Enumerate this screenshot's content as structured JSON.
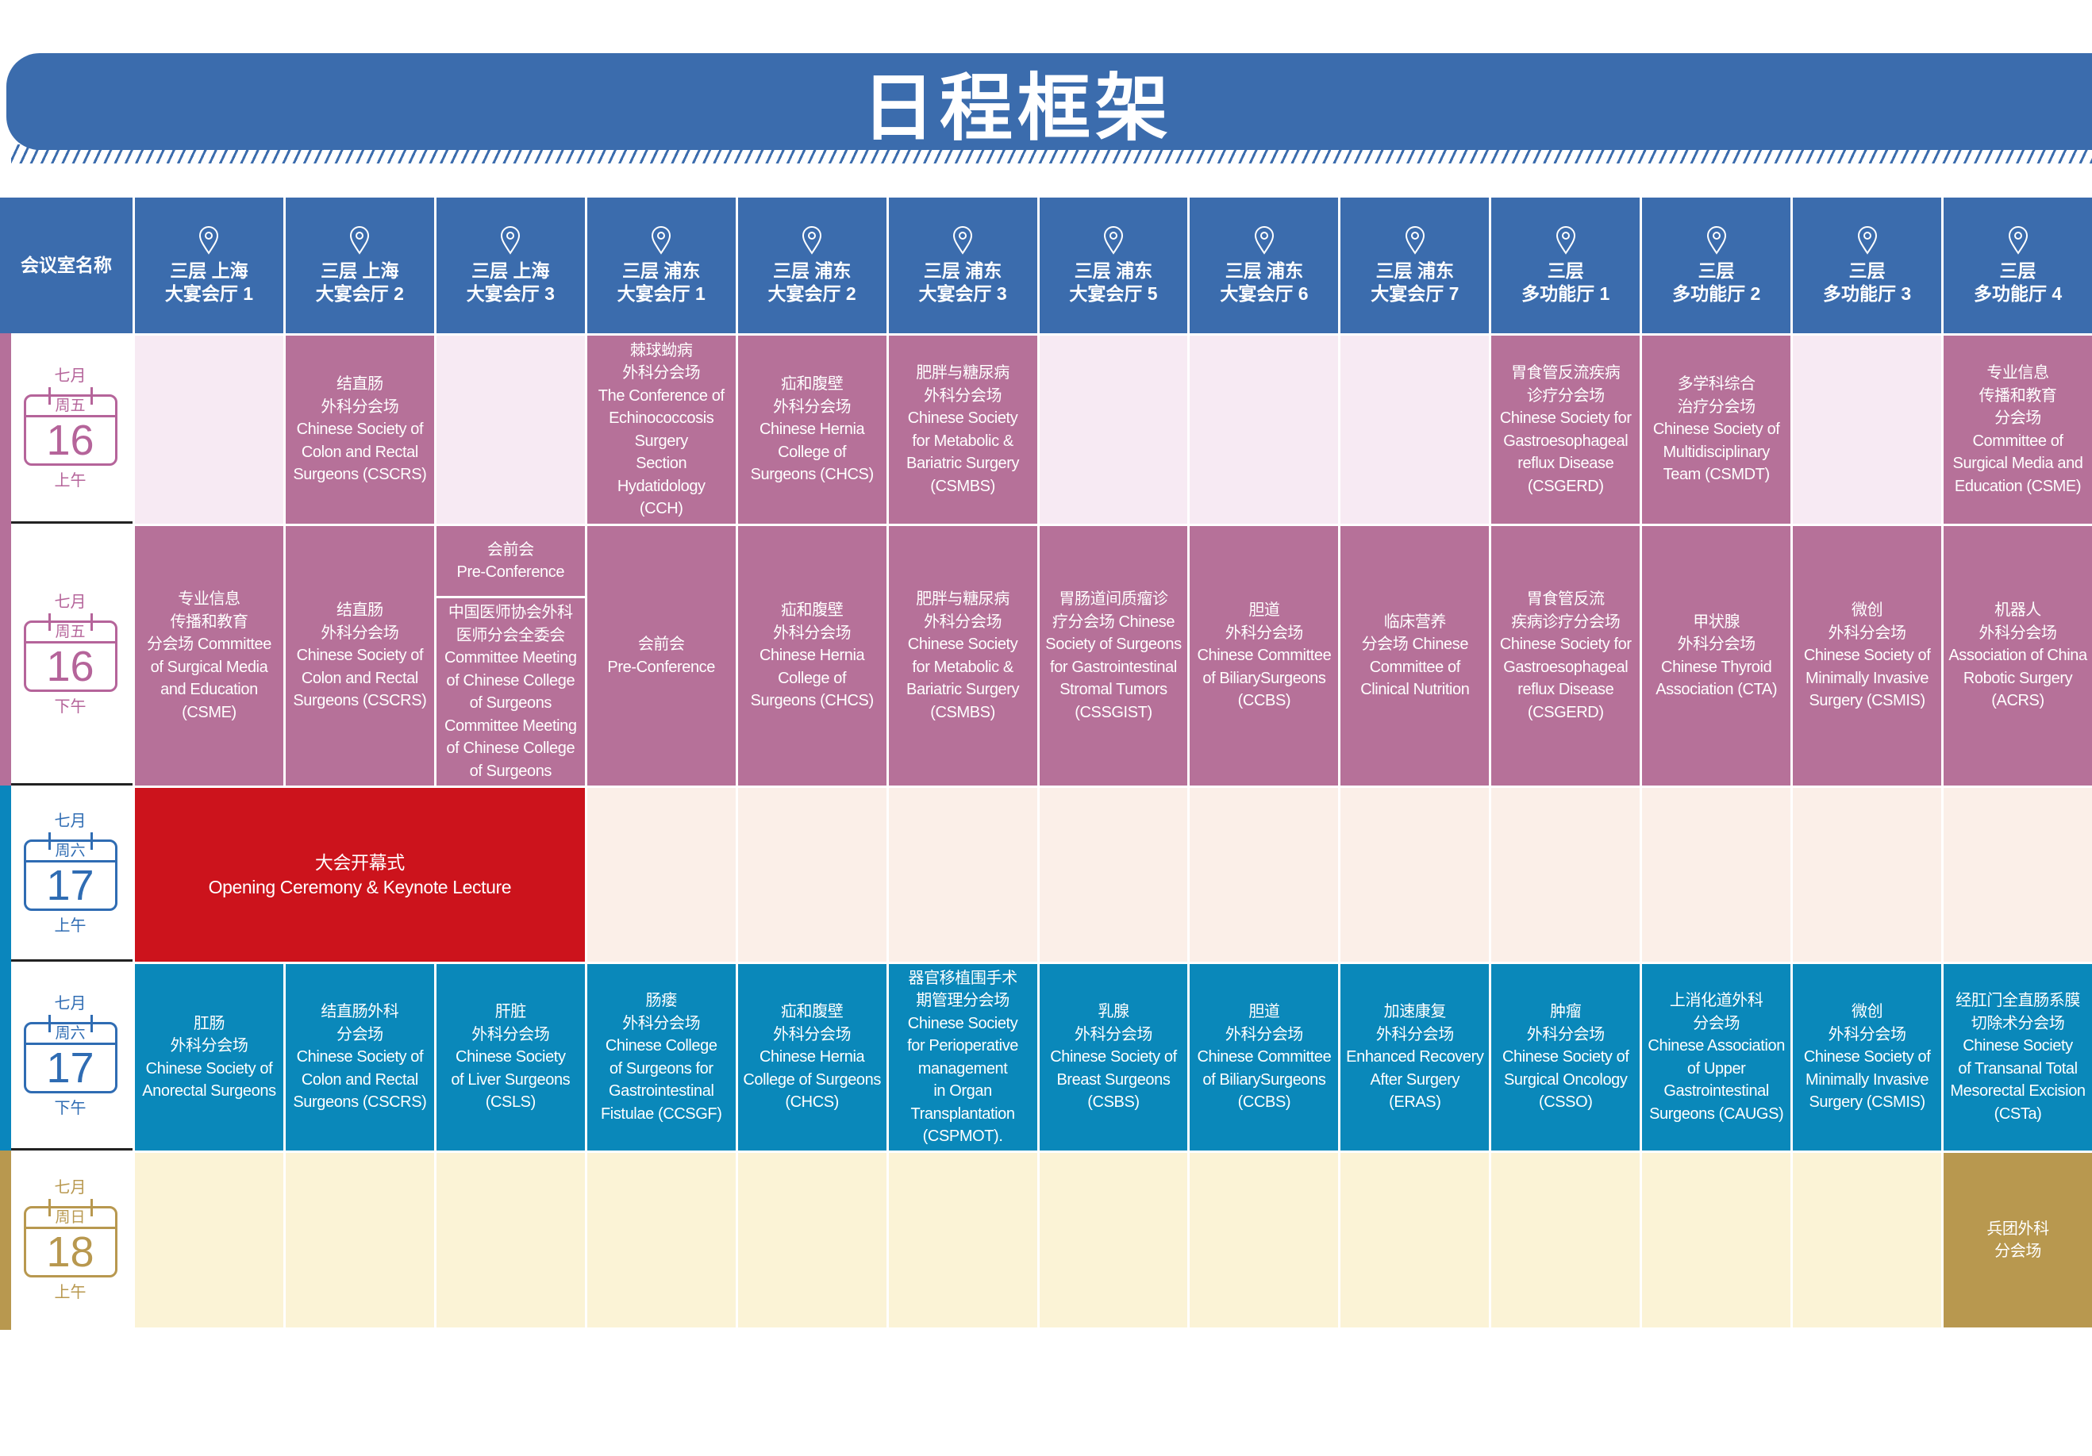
{
  "title": "日程框架",
  "colors": {
    "header": "#3b6cad",
    "mauve": "#b67199",
    "mauve_empty": "#f7eaf3",
    "red": "#cc131c",
    "peach_empty": "#fbefe8",
    "blue": "#0a88ba",
    "cream_empty": "#fbf3d6",
    "gold": "#b8984f"
  },
  "header": {
    "room_label": "会议室名称",
    "icon": "map-pin-icon",
    "rooms": [
      "三层  上海\n大宴会厅 1",
      "三层  上海\n大宴会厅 2",
      "三层  上海\n大宴会厅 3",
      "三层  浦东\n大宴会厅 1",
      "三层  浦东\n大宴会厅 2",
      "三层  浦东\n大宴会厅 3",
      "三层  浦东\n大宴会厅 5",
      "三层  浦东\n大宴会厅 6",
      "三层  浦东\n大宴会厅 7",
      "三层\n多功能厅 1",
      "三层\n多功能厅 2",
      "三层\n多功能厅 3",
      "三层\n多功能厅 4"
    ]
  },
  "rows": [
    {
      "month": "七月",
      "weekday": "周五",
      "day": "16",
      "period": "上午",
      "theme": "mauve",
      "cells": [
        "",
        "结直肠\n外科分会场\nChinese Society of\nColon and Rectal\nSurgeons (CSCRS)",
        "",
        "棘球蚴病\n外科分会场\nThe Conference of\nEchinococcosis\nSurgery\nSection\nHydatidology\n(CCH)",
        "疝和腹壁\n外科分会场\nChinese Hernia\nCollege of\nSurgeons (CHCS)",
        "肥胖与糖尿病\n外科分会场\nChinese Society\nfor Metabolic &\nBariatric Surgery\n(CSMBS)",
        "",
        "",
        "",
        "胃食管反流疾病\n诊疗分会场\nChinese Society for\nGastroesophageal\nreflux Disease\n(CSGERD)",
        "多学科综合\n治疗分会场\nChinese Society of\nMultidisciplinary\nTeam (CSMDT)",
        "",
        "专业信息\n传播和教育\n分会场\nCommittee of\nSurgical Media and\nEducation (CSME)"
      ]
    },
    {
      "month": "七月",
      "weekday": "周五",
      "day": "16",
      "period": "下午",
      "theme": "mauve",
      "cells": [
        "专业信息\n传播和教育\n分会场 Committee\nof Surgical Media\nand Education\n(CSME)",
        "结直肠\n外科分会场\nChinese Society of\nColon and Rectal\nSurgeons (CSCRS)",
        [
          "会前会\nPre-Conference",
          "中国医师协会外科\n医师分会全委会\nCommittee Meeting\nof Chinese College\nof Surgeons\nCommittee Meeting\nof Chinese College\nof Surgeons"
        ],
        "会前会\nPre-Conference",
        "疝和腹壁\n外科分会场\nChinese Hernia\nCollege of\nSurgeons (CHCS)",
        "肥胖与糖尿病\n外科分会场\nChinese Society\nfor Metabolic &\nBariatric Surgery\n(CSMBS)",
        "胃肠道间质瘤诊\n疗分会场 Chinese\nSociety of Surgeons\nfor Gastrointestinal\nStromal Tumors\n(CSSGIST)",
        "胆道\n外科分会场\nChinese Committee\nof BiliarySurgeons\n(CCBS)",
        "临床营养\n分会场 Chinese\nCommittee of\nClinical Nutrition",
        "胃食管反流\n疾病诊疗分会场\nChinese Society for\nGastroesophageal\nreflux Disease\n(CSGERD)",
        "甲状腺\n外科分会场\nChinese Thyroid\nAssociation (CTA)",
        "微创\n外科分会场\nChinese Society of\nMinimally Invasive\nSurgery (CSMIS)",
        "机器人\n外科分会场\nAssociation of China\nRobotic Surgery\n(ACRS)"
      ]
    },
    {
      "month": "七月",
      "weekday": "周六",
      "day": "17",
      "period": "上午",
      "theme": "red",
      "opening": "大会开幕式\nOpening Ceremony & Keynote Lecture",
      "cells": [
        "",
        "",
        "",
        "",
        "",
        "",
        "",
        "",
        "",
        ""
      ]
    },
    {
      "month": "七月",
      "weekday": "周六",
      "day": "17",
      "period": "下午",
      "theme": "blue",
      "cells": [
        "肛肠\n外科分会场\nChinese Society of\nAnorectal Surgeons",
        "结直肠外科\n分会场\nChinese Society of\nColon and Rectal\nSurgeons (CSCRS)",
        "肝脏\n外科分会场\nChinese Society\nof Liver Surgeons\n(CSLS)",
        "肠瘘\n外科分会场\nChinese College\nof Surgeons for\nGastrointestinal\nFistulae (CCSGF)",
        "疝和腹壁\n外科分会场\nChinese Hernia\nCollege of Surgeons\n(CHCS)",
        "器官移植围手术\n期管理分会场\nChinese Society\nfor Perioperative\nmanagement\nin Organ\nTransplantation\n(CSPMOT).",
        "乳腺\n外科分会场\nChinese Society of\nBreast Surgeons\n(CSBS)",
        "胆道\n外科分会场\nChinese Committee\nof BiliarySurgeons\n(CCBS)",
        "加速康复\n外科分会场\nEnhanced Recovery\nAfter Surgery\n(ERAS)",
        "肿瘤\n外科分会场\nChinese Society of\nSurgical Oncology\n(CSSO)",
        "上消化道外科\n分会场\nChinese Association\nof Upper\nGastrointestinal\nSurgeons (CAUGS)",
        "微创\n外科分会场\nChinese Society of\nMinimally Invasive\nSurgery (CSMIS)",
        "经肛门全直肠系膜\n切除术分会场\nChinese Society\nof Transanal Total\nMesorectal Excision\n(CSTa)"
      ]
    },
    {
      "month": "七月",
      "weekday": "周日",
      "day": "18",
      "period": "上午",
      "theme": "gold",
      "cells": [
        "",
        "",
        "",
        "",
        "",
        "",
        "",
        "",
        "",
        "",
        "",
        "",
        "兵团外科\n分会场"
      ]
    }
  ]
}
